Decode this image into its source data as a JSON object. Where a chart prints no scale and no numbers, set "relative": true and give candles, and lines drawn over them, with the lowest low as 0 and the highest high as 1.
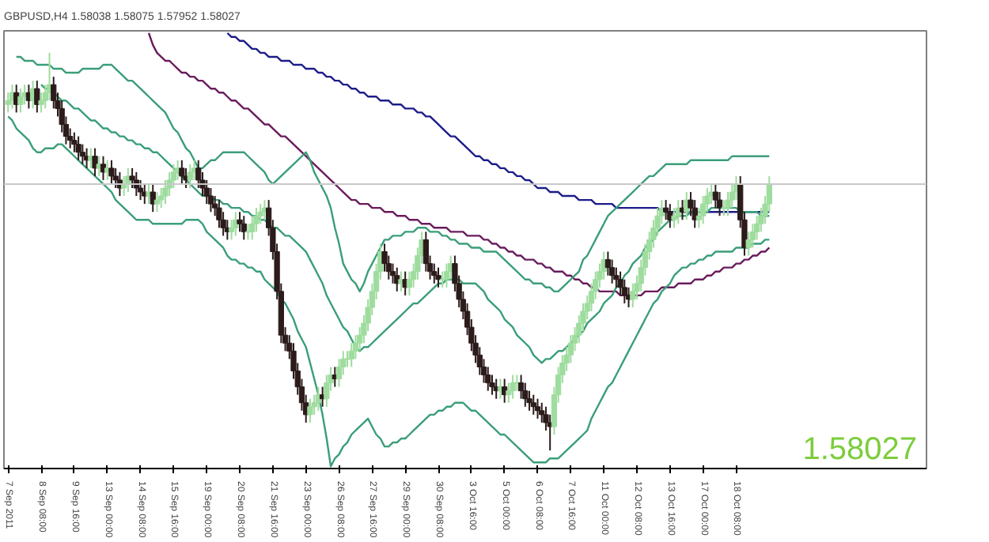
{
  "chart_data": {
    "type": "candlestick",
    "relative": true,
    "title": "GBPUSD,H4 1.58038 1.58075 1.57952 1.58027",
    "colors": [
      "#9fdc9f",
      "#9fdc9f",
      "#2b1b1b",
      "#9fdc9f",
      "#9fdc9f",
      "#2b1b1b",
      "#9fdc9f",
      "#2b1b1b",
      "#9fdc9f",
      "#9fdc9f",
      "#9fdc9f",
      "#2b1b1b",
      "#2b1b1b",
      "#2b1b1b",
      "#2b1b1b",
      "#2b1b1b",
      "#2b1b1b",
      "#2b1b1b",
      "#2b1b1b",
      "#2b1b1b",
      "#9fdc9f",
      "#2b1b1b",
      "#9fdc9f",
      "#2b1b1b",
      "#9fdc9f",
      "#2b1b1b",
      "#2b1b1b",
      "#2b1b1b",
      "#9fdc9f",
      "#9fdc9f",
      "#2b1b1b",
      "#2b1b1b",
      "#2b1b1b",
      "#2b1b1b",
      "#9fdc9f",
      "#2b1b1b",
      "#9fdc9f",
      "#9fdc9f",
      "#9fdc9f",
      "#9fdc9f",
      "#9fdc9f",
      "#9fdc9f",
      "#2b1b1b",
      "#2b1b1b",
      "#9fdc9f",
      "#9fdc9f",
      "#2b1b1b",
      "#2b1b1b",
      "#2b1b1b",
      "#2b1b1b",
      "#2b1b1b",
      "#2b1b1b",
      "#2b1b1b",
      "#2b1b1b",
      "#9fdc9f",
      "#9fdc9f",
      "#2b1b1b",
      "#2b1b1b",
      "#9fdc9f",
      "#9fdc9f",
      "#9fdc9f",
      "#9fdc9f",
      "#9fdc9f",
      "#2b1b1b",
      "#2b1b1b",
      "#2b1b1b",
      "#2b1b1b",
      "#2b1b1b",
      "#2b1b1b",
      "#2b1b1b",
      "#2b1b1b",
      "#2b1b1b",
      "#2b1b1b",
      "#9fdc9f",
      "#9fdc9f",
      "#9fdc9f",
      "#2b1b1b",
      "#9fdc9f",
      "#9fdc9f",
      "#2b1b1b",
      "#9fdc9f",
      "#9fdc9f",
      "#9fdc9f",
      "#9fdc9f",
      "#9fdc9f",
      "#9fdc9f",
      "#9fdc9f",
      "#9fdc9f",
      "#9fdc9f",
      "#9fdc9f",
      "#9fdc9f",
      "#2b1b1b",
      "#2b1b1b",
      "#2b1b1b",
      "#2b1b1b",
      "#9fdc9f",
      "#2b1b1b",
      "#9fdc9f",
      "#9fdc9f",
      "#9fdc9f",
      "#9fdc9f",
      "#2b1b1b",
      "#2b1b1b",
      "#2b1b1b",
      "#2b1b1b",
      "#9fdc9f",
      "#9fdc9f",
      "#9fdc9f",
      "#2b1b1b",
      "#2b1b1b",
      "#2b1b1b",
      "#2b1b1b",
      "#2b1b1b",
      "#2b1b1b",
      "#2b1b1b",
      "#2b1b1b",
      "#2b1b1b",
      "#2b1b1b",
      "#2b1b1b",
      "#9fdc9f",
      "#2b1b1b",
      "#9fdc9f",
      "#9fdc9f",
      "#9fdc9f",
      "#2b1b1b",
      "#2b1b1b",
      "#2b1b1b",
      "#2b1b1b",
      "#2b1b1b",
      "#2b1b1b",
      "#2b1b1b",
      "#2b1b1b",
      "#9fdc9f",
      "#9fdc9f",
      "#9fdc9f",
      "#9fdc9f",
      "#9fdc9f",
      "#9fdc9f",
      "#9fdc9f",
      "#9fdc9f",
      "#9fdc9f",
      "#9fdc9f",
      "#9fdc9f",
      "#9fdc9f",
      "#9fdc9f",
      "#2b1b1b",
      "#2b1b1b",
      "#2b1b1b",
      "#2b1b1b",
      "#2b1b1b",
      "#2b1b1b",
      "#9fdc9f",
      "#9fdc9f",
      "#9fdc9f",
      "#9fdc9f",
      "#9fdc9f",
      "#9fdc9f",
      "#9fdc9f",
      "#9fdc9f",
      "#2b1b1b",
      "#2b1b1b",
      "#9fdc9f",
      "#9fdc9f",
      "#2b1b1b",
      "#9fdc9f",
      "#2b1b1b",
      "#2b1b1b",
      "#9fdc9f",
      "#9fdc9f",
      "#9fdc9f",
      "#9fdc9f",
      "#2b1b1b",
      "#2b1b1b",
      "#9fdc9f",
      "#9fdc9f",
      "#9fdc9f",
      "#9fdc9f",
      "#2b1b1b",
      "#2b1b1b",
      "#9fdc9f",
      "#9fdc9f",
      "#9fdc9f",
      "#9fdc9f",
      "#9fdc9f",
      "#9fdc9f"
    ],
    "categories": [
      "7 Sep 2011",
      null,
      null,
      null,
      null,
      null,
      null,
      null,
      "8 Sep 08:00",
      null,
      null,
      null,
      null,
      null,
      null,
      null,
      "9 Sep 16:00",
      null,
      null,
      null,
      null,
      null,
      null,
      null,
      "13 Sep 00:00",
      null,
      null,
      null,
      null,
      null,
      null,
      null,
      "14 Sep 08:00",
      null,
      null,
      null,
      null,
      null,
      null,
      null,
      "15 Sep 16:00",
      null,
      null,
      null,
      null,
      null,
      null,
      null,
      "19 Sep 00:00",
      null,
      null,
      null,
      null,
      null,
      null,
      null,
      "20 Sep 08:00",
      null,
      null,
      null,
      null,
      null,
      null,
      null,
      "21 Sep 16:00",
      null,
      null,
      null,
      null,
      null,
      null,
      null,
      "23 Sep 00:00",
      null,
      null,
      null,
      null,
      null,
      null,
      null,
      "26 Sep 08:00",
      null,
      null,
      null,
      null,
      null,
      null,
      null,
      "27 Sep 16:00",
      null,
      null,
      null,
      null,
      null,
      null,
      null,
      "29 Sep 00:00",
      null,
      null,
      null,
      null,
      null,
      null,
      null,
      "30 Sep 08:00",
      null,
      null,
      null,
      null,
      null,
      null,
      null,
      "3 Oct 16:00",
      null,
      null,
      null,
      null,
      null,
      null,
      null,
      "5 Oct 00:00",
      null,
      null,
      null,
      null,
      null,
      null,
      null,
      "6 Oct 08:00",
      null,
      null,
      null,
      null,
      null,
      null,
      null,
      "7 Oct 16:00",
      null,
      null,
      null,
      null,
      null,
      null,
      null,
      "11 Oct 00:00",
      null,
      null,
      null,
      null,
      null,
      null,
      null,
      "12 Oct 08:00",
      null,
      null,
      null,
      null,
      null,
      null,
      null,
      "13 Oct 16:00",
      null,
      null,
      null,
      null,
      null,
      null,
      null,
      "17 Oct 00:00",
      null,
      null,
      null,
      null,
      null,
      null,
      null,
      "18 Oct 08:00",
      null,
      null,
      null,
      null,
      null,
      null,
      null,
      null
    ],
    "ohlc": [
      [
        0.87,
        0.9,
        0.85,
        0.88
      ],
      [
        0.88,
        0.92,
        0.86,
        0.9
      ],
      [
        0.9,
        0.92,
        0.85,
        0.87
      ],
      [
        0.87,
        0.91,
        0.85,
        0.89
      ],
      [
        0.89,
        0.92,
        0.87,
        0.9
      ],
      [
        0.9,
        0.92,
        0.86,
        0.88
      ],
      [
        0.88,
        0.93,
        0.86,
        0.91
      ],
      [
        0.91,
        0.93,
        0.85,
        0.87
      ],
      [
        0.87,
        0.9,
        0.85,
        0.88
      ],
      [
        0.88,
        0.92,
        0.86,
        0.9
      ],
      [
        0.9,
        1.0,
        0.88,
        0.92
      ],
      [
        0.92,
        0.94,
        0.86,
        0.88
      ],
      [
        0.88,
        0.9,
        0.84,
        0.86
      ],
      [
        0.86,
        0.88,
        0.8,
        0.82
      ],
      [
        0.82,
        0.84,
        0.77,
        0.79
      ],
      [
        0.79,
        0.81,
        0.76,
        0.78
      ],
      [
        0.78,
        0.8,
        0.75,
        0.77
      ],
      [
        0.77,
        0.79,
        0.73,
        0.75
      ],
      [
        0.75,
        0.77,
        0.72,
        0.74
      ],
      [
        0.74,
        0.76,
        0.71,
        0.73
      ],
      [
        0.73,
        0.76,
        0.71,
        0.74
      ],
      [
        0.74,
        0.76,
        0.69,
        0.71
      ],
      [
        0.71,
        0.74,
        0.69,
        0.72
      ],
      [
        0.72,
        0.74,
        0.68,
        0.7
      ],
      [
        0.7,
        0.73,
        0.68,
        0.71
      ],
      [
        0.71,
        0.73,
        0.67,
        0.69
      ],
      [
        0.69,
        0.71,
        0.66,
        0.68
      ],
      [
        0.68,
        0.7,
        0.64,
        0.66
      ],
      [
        0.66,
        0.69,
        0.64,
        0.67
      ],
      [
        0.67,
        0.71,
        0.65,
        0.69
      ],
      [
        0.69,
        0.71,
        0.66,
        0.68
      ],
      [
        0.68,
        0.7,
        0.64,
        0.66
      ],
      [
        0.66,
        0.68,
        0.63,
        0.65
      ],
      [
        0.65,
        0.67,
        0.62,
        0.64
      ],
      [
        0.64,
        0.67,
        0.62,
        0.65
      ],
      [
        0.65,
        0.67,
        0.6,
        0.62
      ],
      [
        0.62,
        0.65,
        0.6,
        0.63
      ],
      [
        0.63,
        0.66,
        0.61,
        0.64
      ],
      [
        0.64,
        0.68,
        0.62,
        0.66
      ],
      [
        0.66,
        0.7,
        0.64,
        0.68
      ],
      [
        0.68,
        0.72,
        0.66,
        0.7
      ],
      [
        0.7,
        0.73,
        0.68,
        0.71
      ],
      [
        0.71,
        0.73,
        0.67,
        0.69
      ],
      [
        0.69,
        0.71,
        0.66,
        0.68
      ],
      [
        0.68,
        0.72,
        0.66,
        0.7
      ],
      [
        0.7,
        0.73,
        0.68,
        0.71
      ],
      [
        0.71,
        0.73,
        0.66,
        0.68
      ],
      [
        0.68,
        0.7,
        0.64,
        0.66
      ],
      [
        0.66,
        0.68,
        0.62,
        0.64
      ],
      [
        0.64,
        0.66,
        0.6,
        0.62
      ],
      [
        0.62,
        0.64,
        0.59,
        0.61
      ],
      [
        0.61,
        0.63,
        0.56,
        0.58
      ],
      [
        0.58,
        0.6,
        0.54,
        0.56
      ],
      [
        0.56,
        0.58,
        0.53,
        0.55
      ],
      [
        0.55,
        0.58,
        0.53,
        0.56
      ],
      [
        0.56,
        0.6,
        0.54,
        0.58
      ],
      [
        0.58,
        0.6,
        0.55,
        0.57
      ],
      [
        0.57,
        0.59,
        0.53,
        0.55
      ],
      [
        0.55,
        0.57,
        0.53,
        0.55
      ],
      [
        0.55,
        0.59,
        0.53,
        0.57
      ],
      [
        0.57,
        0.61,
        0.55,
        0.59
      ],
      [
        0.59,
        0.62,
        0.57,
        0.6
      ],
      [
        0.6,
        0.63,
        0.58,
        0.61
      ],
      [
        0.61,
        0.63,
        0.54,
        0.56
      ],
      [
        0.56,
        0.58,
        0.48,
        0.5
      ],
      [
        0.5,
        0.52,
        0.38,
        0.4
      ],
      [
        0.4,
        0.42,
        0.27,
        0.29
      ],
      [
        0.29,
        0.31,
        0.25,
        0.27
      ],
      [
        0.27,
        0.29,
        0.23,
        0.25
      ],
      [
        0.25,
        0.27,
        0.18,
        0.2
      ],
      [
        0.2,
        0.22,
        0.14,
        0.16
      ],
      [
        0.16,
        0.18,
        0.1,
        0.12
      ],
      [
        0.12,
        0.14,
        0.07,
        0.09
      ],
      [
        0.09,
        0.13,
        0.07,
        0.11
      ],
      [
        0.11,
        0.14,
        0.09,
        0.12
      ],
      [
        0.12,
        0.16,
        0.1,
        0.14
      ],
      [
        0.14,
        0.16,
        0.11,
        0.13
      ],
      [
        0.13,
        0.19,
        0.11,
        0.17
      ],
      [
        0.17,
        0.21,
        0.15,
        0.19
      ],
      [
        0.19,
        0.21,
        0.16,
        0.18
      ],
      [
        0.18,
        0.23,
        0.16,
        0.21
      ],
      [
        0.21,
        0.25,
        0.19,
        0.23
      ],
      [
        0.23,
        0.25,
        0.21,
        0.23
      ],
      [
        0.23,
        0.27,
        0.21,
        0.25
      ],
      [
        0.25,
        0.29,
        0.23,
        0.27
      ],
      [
        0.27,
        0.31,
        0.25,
        0.29
      ],
      [
        0.29,
        0.34,
        0.27,
        0.32
      ],
      [
        0.32,
        0.38,
        0.3,
        0.36
      ],
      [
        0.36,
        0.42,
        0.34,
        0.4
      ],
      [
        0.4,
        0.47,
        0.38,
        0.45
      ],
      [
        0.45,
        0.52,
        0.43,
        0.5
      ],
      [
        0.5,
        0.52,
        0.45,
        0.47
      ],
      [
        0.47,
        0.49,
        0.43,
        0.45
      ],
      [
        0.45,
        0.47,
        0.42,
        0.44
      ],
      [
        0.44,
        0.46,
        0.4,
        0.42
      ],
      [
        0.42,
        0.45,
        0.4,
        0.43
      ],
      [
        0.43,
        0.45,
        0.39,
        0.41
      ],
      [
        0.41,
        0.45,
        0.39,
        0.43
      ],
      [
        0.43,
        0.47,
        0.41,
        0.45
      ],
      [
        0.45,
        0.51,
        0.43,
        0.49
      ],
      [
        0.49,
        0.55,
        0.47,
        0.53
      ],
      [
        0.53,
        0.55,
        0.45,
        0.47
      ],
      [
        0.47,
        0.49,
        0.43,
        0.45
      ],
      [
        0.45,
        0.47,
        0.42,
        0.44
      ],
      [
        0.44,
        0.46,
        0.41,
        0.43
      ],
      [
        0.43,
        0.45,
        0.41,
        0.43
      ],
      [
        0.43,
        0.47,
        0.41,
        0.45
      ],
      [
        0.45,
        0.49,
        0.43,
        0.47
      ],
      [
        0.47,
        0.49,
        0.4,
        0.42
      ],
      [
        0.42,
        0.44,
        0.36,
        0.38
      ],
      [
        0.38,
        0.4,
        0.33,
        0.35
      ],
      [
        0.35,
        0.37,
        0.29,
        0.31
      ],
      [
        0.31,
        0.33,
        0.25,
        0.27
      ],
      [
        0.27,
        0.29,
        0.22,
        0.24
      ],
      [
        0.24,
        0.26,
        0.19,
        0.21
      ],
      [
        0.21,
        0.23,
        0.17,
        0.19
      ],
      [
        0.19,
        0.21,
        0.15,
        0.17
      ],
      [
        0.17,
        0.19,
        0.14,
        0.16
      ],
      [
        0.16,
        0.18,
        0.13,
        0.15
      ],
      [
        0.15,
        0.18,
        0.13,
        0.16
      ],
      [
        0.16,
        0.18,
        0.12,
        0.14
      ],
      [
        0.14,
        0.17,
        0.12,
        0.15
      ],
      [
        0.15,
        0.19,
        0.13,
        0.17
      ],
      [
        0.17,
        0.19,
        0.15,
        0.17
      ],
      [
        0.17,
        0.19,
        0.13,
        0.15
      ],
      [
        0.15,
        0.17,
        0.11,
        0.13
      ],
      [
        0.13,
        0.15,
        0.1,
        0.12
      ],
      [
        0.12,
        0.14,
        0.09,
        0.11
      ],
      [
        0.11,
        0.13,
        0.08,
        0.1
      ],
      [
        0.1,
        0.12,
        0.07,
        0.09
      ],
      [
        0.09,
        0.11,
        0.05,
        0.07
      ],
      [
        0.07,
        0.09,
        0.0,
        0.06
      ],
      [
        0.06,
        0.16,
        0.04,
        0.14
      ],
      [
        0.14,
        0.21,
        0.12,
        0.19
      ],
      [
        0.19,
        0.24,
        0.17,
        0.22
      ],
      [
        0.22,
        0.26,
        0.2,
        0.24
      ],
      [
        0.24,
        0.29,
        0.22,
        0.27
      ],
      [
        0.27,
        0.31,
        0.25,
        0.29
      ],
      [
        0.29,
        0.34,
        0.27,
        0.32
      ],
      [
        0.32,
        0.37,
        0.3,
        0.35
      ],
      [
        0.35,
        0.39,
        0.33,
        0.37
      ],
      [
        0.37,
        0.42,
        0.35,
        0.4
      ],
      [
        0.4,
        0.45,
        0.38,
        0.43
      ],
      [
        0.43,
        0.47,
        0.41,
        0.45
      ],
      [
        0.45,
        0.5,
        0.43,
        0.48
      ],
      [
        0.48,
        0.5,
        0.44,
        0.46
      ],
      [
        0.46,
        0.48,
        0.42,
        0.44
      ],
      [
        0.44,
        0.46,
        0.41,
        0.43
      ],
      [
        0.43,
        0.45,
        0.39,
        0.41
      ],
      [
        0.41,
        0.43,
        0.37,
        0.39
      ],
      [
        0.39,
        0.41,
        0.36,
        0.38
      ],
      [
        0.38,
        0.42,
        0.36,
        0.4
      ],
      [
        0.4,
        0.44,
        0.38,
        0.42
      ],
      [
        0.42,
        0.48,
        0.4,
        0.46
      ],
      [
        0.46,
        0.52,
        0.44,
        0.5
      ],
      [
        0.5,
        0.55,
        0.48,
        0.53
      ],
      [
        0.53,
        0.58,
        0.51,
        0.56
      ],
      [
        0.56,
        0.61,
        0.54,
        0.59
      ],
      [
        0.59,
        0.63,
        0.57,
        0.61
      ],
      [
        0.61,
        0.63,
        0.58,
        0.6
      ],
      [
        0.6,
        0.62,
        0.56,
        0.58
      ],
      [
        0.58,
        0.61,
        0.56,
        0.59
      ],
      [
        0.59,
        0.63,
        0.57,
        0.61
      ],
      [
        0.61,
        0.63,
        0.58,
        0.6
      ],
      [
        0.6,
        0.65,
        0.58,
        0.63
      ],
      [
        0.63,
        0.65,
        0.59,
        0.61
      ],
      [
        0.61,
        0.63,
        0.56,
        0.58
      ],
      [
        0.58,
        0.61,
        0.56,
        0.59
      ],
      [
        0.59,
        0.64,
        0.57,
        0.62
      ],
      [
        0.62,
        0.66,
        0.6,
        0.64
      ],
      [
        0.64,
        0.67,
        0.62,
        0.65
      ],
      [
        0.65,
        0.67,
        0.61,
        0.63
      ],
      [
        0.63,
        0.65,
        0.59,
        0.61
      ],
      [
        0.61,
        0.63,
        0.59,
        0.61
      ],
      [
        0.61,
        0.65,
        0.59,
        0.63
      ],
      [
        0.63,
        0.67,
        0.61,
        0.65
      ],
      [
        0.65,
        0.69,
        0.63,
        0.67
      ],
      [
        0.67,
        0.69,
        0.56,
        0.58
      ],
      [
        0.58,
        0.6,
        0.49,
        0.51
      ],
      [
        0.51,
        0.55,
        0.49,
        0.53
      ],
      [
        0.53,
        0.57,
        0.51,
        0.55
      ],
      [
        0.55,
        0.59,
        0.53,
        0.57
      ],
      [
        0.57,
        0.61,
        0.55,
        0.59
      ],
      [
        0.59,
        0.64,
        0.57,
        0.62
      ],
      [
        0.62,
        0.69,
        0.6,
        0.67
      ]
    ],
    "series": [
      {
        "type": "line",
        "color": "#1c1c8a",
        "values": [
          null,
          null,
          null,
          null,
          null,
          null,
          null,
          null,
          null,
          null,
          null,
          null,
          null,
          null,
          null,
          null,
          null,
          null,
          null,
          null,
          null,
          null,
          null,
          null,
          null,
          null,
          null,
          null,
          null,
          null,
          null,
          null,
          null,
          null,
          null,
          null,
          null,
          null,
          null,
          null,
          null,
          null,
          null,
          null,
          null,
          null,
          null,
          null,
          null,
          null,
          null,
          null,
          null,
          1.05,
          1.04,
          1.04,
          1.03,
          1.03,
          1.02,
          1.01,
          1.01,
          1.0,
          1.0,
          0.99,
          0.99,
          0.99,
          0.98,
          0.98,
          0.98,
          0.97,
          0.97,
          0.97,
          0.96,
          0.96,
          0.96,
          0.95,
          0.95,
          0.94,
          0.94,
          0.93,
          0.93,
          0.92,
          0.92,
          0.91,
          0.91,
          0.9,
          0.9,
          0.89,
          0.89,
          0.89,
          0.88,
          0.88,
          0.88,
          0.87,
          0.87,
          0.87,
          0.86,
          0.86,
          0.86,
          0.85,
          0.85,
          0.84,
          0.84,
          0.83,
          0.82,
          0.81,
          0.8,
          0.79,
          0.79,
          0.78,
          0.77,
          0.76,
          0.75,
          0.74,
          0.74,
          0.73,
          0.73,
          0.72,
          0.72,
          0.71,
          0.71,
          0.7,
          0.7,
          0.69,
          0.69,
          0.68,
          0.68,
          0.67,
          0.66,
          0.66,
          0.66,
          0.65,
          0.65,
          0.65,
          0.64,
          0.64,
          0.64,
          0.64,
          0.63,
          0.63,
          0.63,
          0.63,
          0.62,
          0.62,
          0.62,
          0.62,
          0.62,
          0.61,
          0.61,
          0.61,
          0.61,
          0.61,
          0.61,
          0.61,
          0.61,
          0.61,
          0.61,
          0.61,
          0.6,
          0.6,
          0.6,
          0.6,
          0.6,
          0.6,
          0.6,
          0.6,
          0.6,
          0.6,
          0.6,
          0.6,
          0.6,
          0.6,
          0.6,
          0.6,
          0.6,
          0.6,
          0.6,
          0.6,
          0.6,
          0.6,
          0.6,
          0.6,
          0.6,
          0.6,
          0.6
        ]
      },
      {
        "type": "line",
        "color": "#6a1b5c",
        "values": [
          null,
          null,
          null,
          null,
          null,
          null,
          null,
          null,
          null,
          null,
          null,
          null,
          null,
          null,
          null,
          null,
          null,
          null,
          null,
          null,
          null,
          null,
          null,
          null,
          null,
          null,
          null,
          null,
          null,
          null,
          null,
          null,
          null,
          null,
          1.05,
          1.02,
          1.0,
          0.99,
          0.98,
          0.98,
          0.97,
          0.96,
          0.95,
          0.95,
          0.94,
          0.94,
          0.93,
          0.93,
          0.92,
          0.91,
          0.91,
          0.9,
          0.9,
          0.89,
          0.88,
          0.88,
          0.87,
          0.86,
          0.86,
          0.85,
          0.84,
          0.83,
          0.82,
          0.82,
          0.81,
          0.8,
          0.79,
          0.79,
          0.78,
          0.77,
          0.76,
          0.75,
          0.74,
          0.73,
          0.72,
          0.71,
          0.7,
          0.69,
          0.68,
          0.67,
          0.66,
          0.65,
          0.64,
          0.63,
          0.63,
          0.62,
          0.62,
          0.62,
          0.61,
          0.61,
          0.61,
          0.6,
          0.6,
          0.6,
          0.59,
          0.59,
          0.59,
          0.58,
          0.58,
          0.58,
          0.57,
          0.57,
          0.57,
          0.56,
          0.56,
          0.56,
          0.56,
          0.55,
          0.55,
          0.55,
          0.55,
          0.54,
          0.54,
          0.54,
          0.54,
          0.53,
          0.53,
          0.52,
          0.52,
          0.51,
          0.51,
          0.5,
          0.5,
          0.49,
          0.49,
          0.48,
          0.48,
          0.48,
          0.47,
          0.47,
          0.46,
          0.46,
          0.45,
          0.45,
          0.45,
          0.44,
          0.44,
          0.43,
          0.43,
          0.42,
          0.42,
          0.41,
          0.41,
          0.4,
          0.4,
          0.4,
          0.4,
          0.4,
          0.39,
          0.39,
          0.39,
          0.39,
          0.39,
          0.39,
          0.4,
          0.4,
          0.4,
          0.4,
          0.41,
          0.41,
          0.41,
          0.41,
          0.42,
          0.42,
          0.42,
          0.42,
          0.43,
          0.43,
          0.43,
          0.44,
          0.44,
          0.45,
          0.45,
          0.46,
          0.46,
          0.46,
          0.47,
          0.47,
          0.48,
          0.48,
          0.49,
          0.49,
          0.5,
          0.5,
          0.51
        ]
      },
      {
        "type": "line",
        "color": "#3a9e78",
        "values": [
          null,
          null,
          0.99,
          0.99,
          0.98,
          0.98,
          0.98,
          0.97,
          0.97,
          0.97,
          0.97,
          0.96,
          0.96,
          0.96,
          0.95,
          0.95,
          0.95,
          0.95,
          0.96,
          0.96,
          0.96,
          0.96,
          0.96,
          0.97,
          0.97,
          0.97,
          0.96,
          0.95,
          0.94,
          0.93,
          0.93,
          0.92,
          0.91,
          0.9,
          0.89,
          0.88,
          0.87,
          0.86,
          0.85,
          0.83,
          0.81,
          0.8,
          0.78,
          0.76,
          0.75,
          0.73,
          0.71,
          0.71,
          0.72,
          0.73,
          0.73,
          0.74,
          0.75,
          0.75,
          0.75,
          0.75,
          0.75,
          0.75,
          0.74,
          0.73,
          0.72,
          0.71,
          0.7,
          0.68,
          0.67,
          0.68,
          0.69,
          0.7,
          0.71,
          0.72,
          0.73,
          0.74,
          0.75,
          0.73,
          0.7,
          0.68,
          0.66,
          0.64,
          0.61,
          0.56,
          0.52,
          0.47,
          0.45,
          0.43,
          0.42,
          0.4,
          0.42,
          0.45,
          0.47,
          0.49,
          0.51,
          0.53,
          0.53,
          0.54,
          0.54,
          0.54,
          0.55,
          0.55,
          0.55,
          0.56,
          0.56,
          0.56,
          0.55,
          0.55,
          0.55,
          0.54,
          0.54,
          0.53,
          0.53,
          0.52,
          0.52,
          0.52,
          0.51,
          0.51,
          0.51,
          0.5,
          0.5,
          0.5,
          0.5,
          0.49,
          0.48,
          0.47,
          0.46,
          0.45,
          0.44,
          0.43,
          0.43,
          0.42,
          0.42,
          0.42,
          0.41,
          0.41,
          0.4,
          0.4,
          0.41,
          0.42,
          0.43,
          0.44,
          0.45,
          0.48,
          0.49,
          0.51,
          0.53,
          0.55,
          0.57,
          0.59,
          0.6,
          0.61,
          0.62,
          0.63,
          0.64,
          0.65,
          0.66,
          0.67,
          0.68,
          0.69,
          0.69,
          0.7,
          0.71,
          0.72,
          0.72,
          0.72,
          0.72,
          0.72,
          0.72,
          0.73,
          0.73,
          0.73,
          0.73,
          0.73,
          0.73,
          0.73,
          0.73,
          0.73,
          0.73,
          0.74,
          0.74,
          0.74,
          0.74,
          0.74,
          0.74,
          0.74,
          0.74,
          0.74,
          0.74
        ]
      },
      {
        "type": "line",
        "color": "#3a9e78",
        "values": [
          null,
          null,
          null,
          null,
          null,
          null,
          null,
          null,
          0.92,
          0.91,
          0.91,
          0.9,
          0.89,
          0.88,
          0.88,
          0.87,
          0.86,
          0.86,
          0.85,
          0.84,
          0.83,
          0.83,
          0.82,
          0.81,
          0.81,
          0.8,
          0.8,
          0.79,
          0.79,
          0.78,
          0.78,
          0.77,
          0.77,
          0.76,
          0.76,
          0.75,
          0.75,
          0.74,
          0.73,
          0.72,
          0.71,
          0.7,
          0.69,
          0.68,
          0.67,
          0.66,
          0.65,
          0.64,
          0.64,
          0.64,
          0.63,
          0.63,
          0.62,
          0.62,
          0.61,
          0.61,
          0.61,
          0.6,
          0.6,
          0.59,
          0.59,
          0.58,
          0.58,
          0.57,
          0.56,
          0.56,
          0.55,
          0.54,
          0.54,
          0.53,
          0.52,
          0.51,
          0.5,
          0.48,
          0.46,
          0.44,
          0.42,
          0.39,
          0.37,
          0.35,
          0.33,
          0.31,
          0.3,
          0.28,
          0.26,
          0.25,
          0.26,
          0.26,
          0.27,
          0.28,
          0.29,
          0.3,
          0.31,
          0.32,
          0.33,
          0.34,
          0.35,
          0.36,
          0.37,
          0.37,
          0.38,
          0.39,
          0.4,
          0.41,
          0.42,
          0.42,
          0.43,
          0.43,
          0.43,
          0.43,
          0.42,
          0.42,
          0.42,
          0.42,
          0.41,
          0.4,
          0.38,
          0.37,
          0.36,
          0.35,
          0.33,
          0.32,
          0.31,
          0.29,
          0.28,
          0.27,
          0.26,
          0.24,
          0.23,
          0.22,
          0.23,
          0.23,
          0.24,
          0.25,
          0.25,
          0.26,
          0.27,
          0.28,
          0.29,
          0.3,
          0.32,
          0.33,
          0.34,
          0.35,
          0.37,
          0.38,
          0.39,
          0.41,
          0.42,
          0.44,
          0.45,
          0.47,
          0.48,
          0.49,
          0.51,
          0.52,
          0.53,
          0.55,
          0.56,
          0.57,
          0.58,
          0.58,
          0.59,
          0.59,
          0.59,
          0.6,
          0.6,
          0.6,
          0.6,
          0.6,
          0.61,
          0.61,
          0.61,
          0.61,
          0.61,
          0.61,
          0.61,
          0.6,
          0.6,
          0.6,
          0.6,
          0.6,
          0.59,
          0.59,
          0.59
        ]
      },
      {
        "type": "line",
        "color": "#3a9e78",
        "values": [
          0.84,
          0.83,
          0.81,
          0.8,
          0.79,
          0.78,
          0.76,
          0.75,
          0.75,
          0.76,
          0.76,
          0.76,
          0.77,
          0.77,
          0.76,
          0.75,
          0.74,
          0.73,
          0.72,
          0.71,
          0.7,
          0.69,
          0.68,
          0.67,
          0.66,
          0.65,
          0.63,
          0.62,
          0.61,
          0.6,
          0.59,
          0.58,
          0.58,
          0.58,
          0.58,
          0.57,
          0.57,
          0.57,
          0.57,
          0.57,
          0.57,
          0.57,
          0.57,
          0.58,
          0.58,
          0.58,
          0.58,
          0.57,
          0.55,
          0.54,
          0.53,
          0.52,
          0.51,
          0.49,
          0.48,
          0.48,
          0.47,
          0.47,
          0.46,
          0.46,
          0.45,
          0.45,
          0.43,
          0.42,
          0.41,
          0.4,
          0.38,
          0.37,
          0.35,
          0.33,
          0.3,
          0.28,
          0.26,
          0.22,
          0.18,
          0.14,
          0.09,
          0.03,
          -0.04,
          -0.02,
          -0.01,
          0.01,
          0.02,
          0.04,
          0.05,
          0.06,
          0.07,
          0.08,
          0.06,
          0.04,
          0.03,
          0.01,
          0.01,
          0.02,
          0.02,
          0.03,
          0.03,
          0.04,
          0.05,
          0.06,
          0.07,
          0.08,
          0.09,
          0.09,
          0.1,
          0.1,
          0.11,
          0.11,
          0.12,
          0.12,
          0.12,
          0.11,
          0.1,
          0.1,
          0.09,
          0.08,
          0.07,
          0.06,
          0.05,
          0.04,
          0.04,
          0.03,
          0.02,
          0.01,
          0.0,
          -0.01,
          -0.02,
          -0.03,
          -0.03,
          -0.03,
          -0.03,
          -0.02,
          -0.02,
          -0.02,
          -0.01,
          0.0,
          0.01,
          0.02,
          0.03,
          0.04,
          0.05,
          0.08,
          0.1,
          0.12,
          0.14,
          0.16,
          0.17,
          0.19,
          0.21,
          0.23,
          0.25,
          0.27,
          0.29,
          0.31,
          0.33,
          0.35,
          0.37,
          0.38,
          0.4,
          0.41,
          0.42,
          0.44,
          0.45,
          0.46,
          0.46,
          0.47,
          0.47,
          0.48,
          0.48,
          0.49,
          0.49,
          0.5,
          0.5,
          0.5,
          0.5,
          0.5,
          0.51,
          0.51,
          0.51,
          0.51,
          0.52,
          0.52,
          0.52,
          0.53,
          0.53
        ]
      }
    ],
    "ref_lines": [
      {
        "axis": "y",
        "value": 0.67,
        "color": "#c8c8c8"
      }
    ],
    "annotations": [
      "1.58027"
    ],
    "grid": false
  }
}
